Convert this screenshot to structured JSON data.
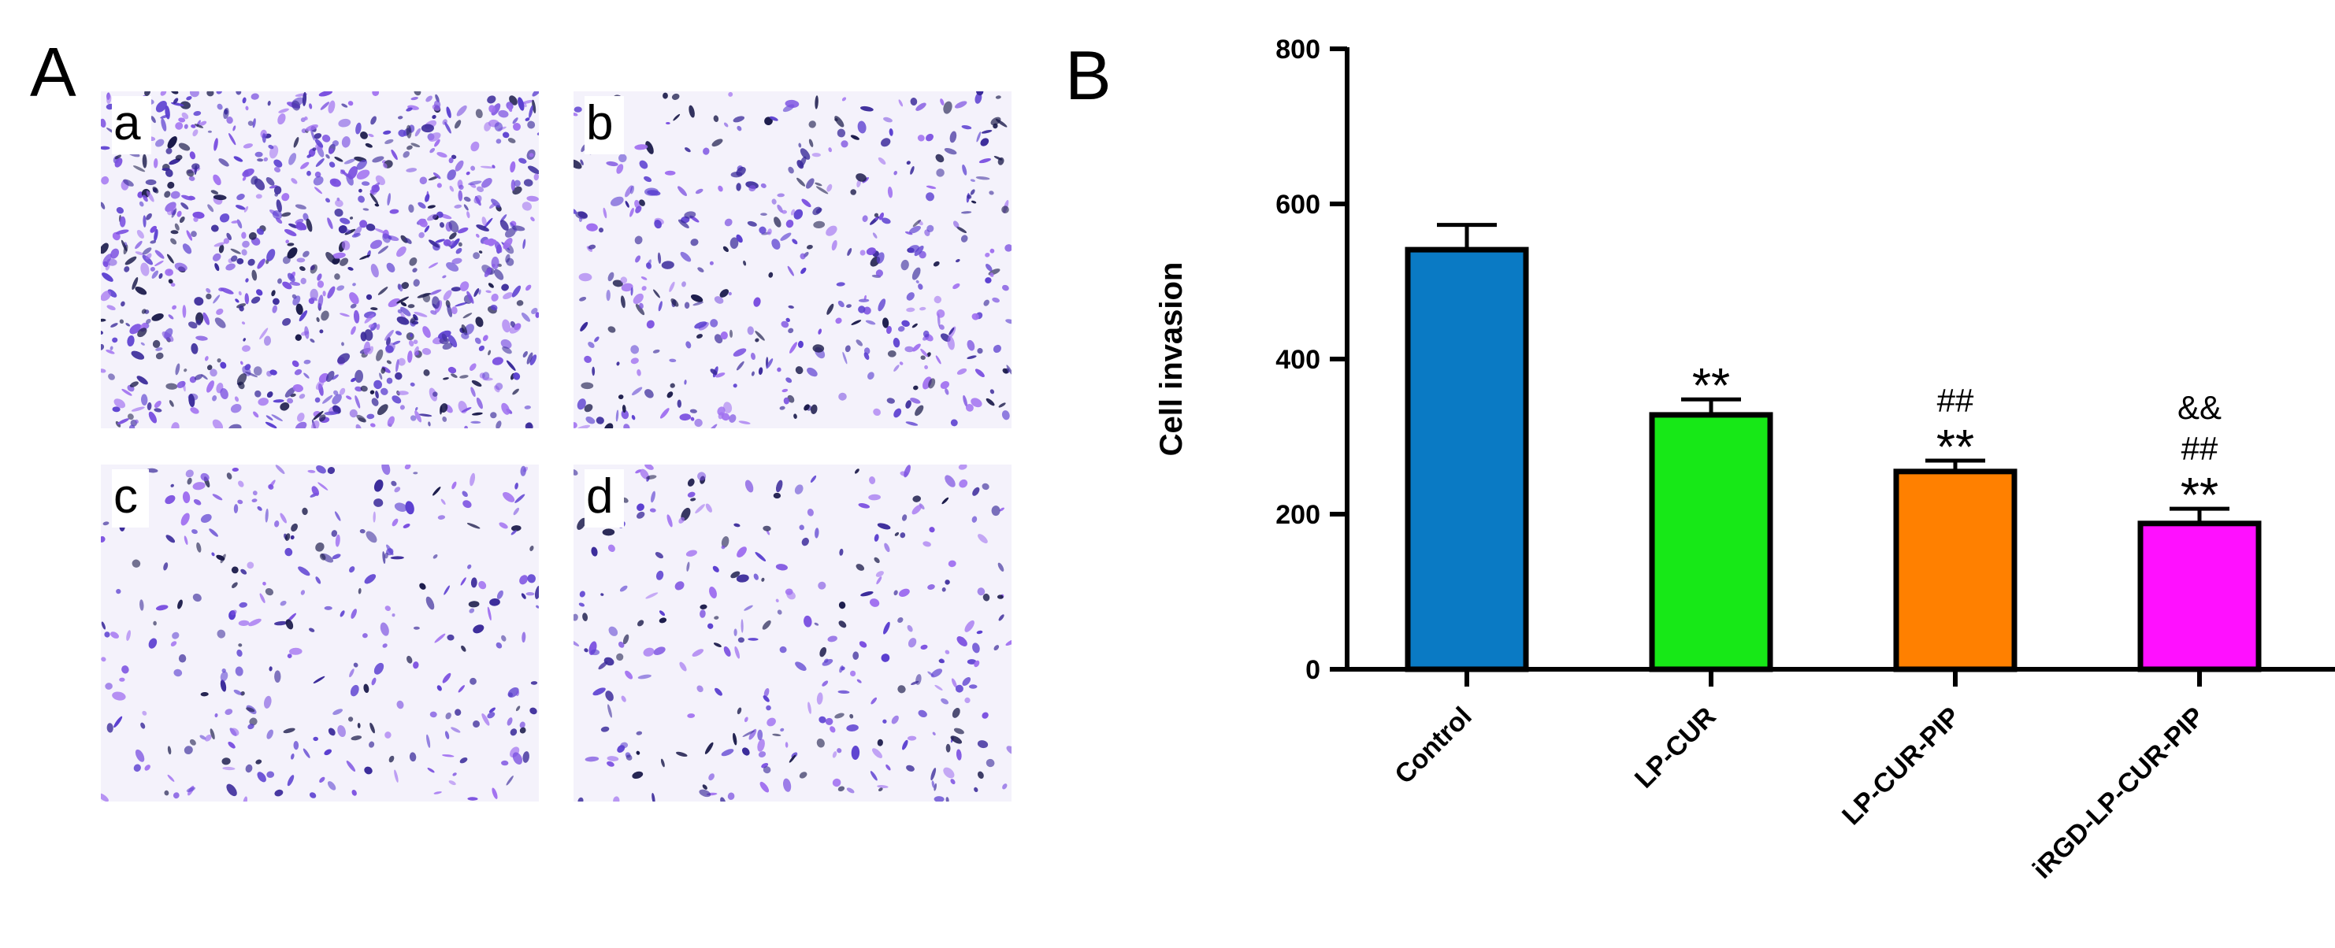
{
  "panels": {
    "A": {
      "label": "A",
      "images": [
        {
          "label": "a",
          "density": "high"
        },
        {
          "label": "b",
          "density": "medium"
        },
        {
          "label": "c",
          "density": "low"
        },
        {
          "label": "d",
          "density": "low"
        }
      ],
      "stain_colors": [
        "#5b3fd0",
        "#3a2a9a",
        "#1a1a4a",
        "#7a4fe0",
        "#a070f0"
      ]
    },
    "B": {
      "label": "B"
    }
  },
  "chart_data": {
    "type": "bar",
    "categories": [
      "Control",
      "LP-CUR",
      "LP-CUR-PIP",
      "iRGD-LP-CUR-PIP"
    ],
    "values": [
      541,
      328,
      255,
      188
    ],
    "errors": [
      32,
      20,
      14,
      19
    ],
    "colors": [
      "#0a7ac4",
      "#17e817",
      "#ff8000",
      "#ff10ff"
    ],
    "annotations": [
      [],
      [
        "**"
      ],
      [
        "##",
        "**"
      ],
      [
        "&&",
        "##",
        "**"
      ]
    ],
    "ylabel": "Cell invasion",
    "xlabel": "",
    "ylim": [
      0,
      800
    ],
    "yticks": [
      0,
      200,
      400,
      600,
      800
    ],
    "grid": false
  }
}
